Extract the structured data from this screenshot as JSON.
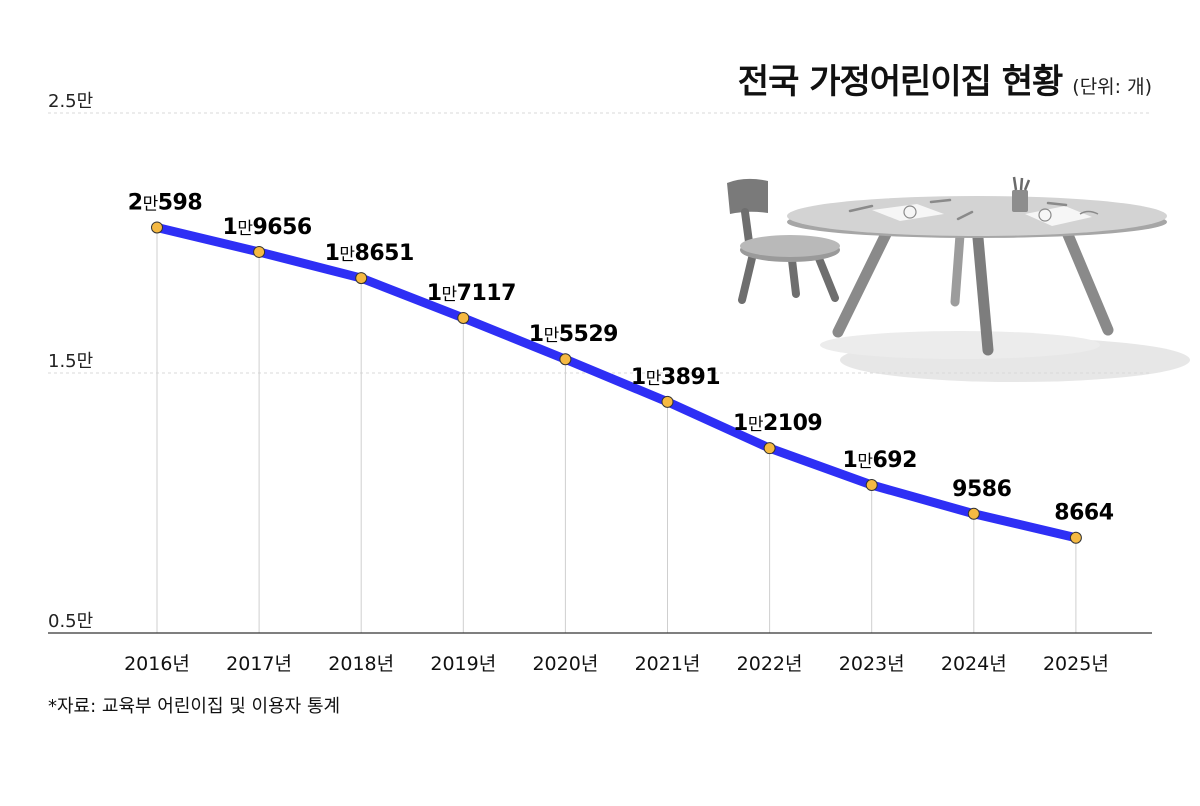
{
  "header": {
    "title": "전국 가정어린이집 현황",
    "unit": "(단위: 개)"
  },
  "footer": {
    "source": "*자료: 교육부 어린이집 및 이용자 통계"
  },
  "colors": {
    "line": "#2e2ff5",
    "marker": "#f5b942",
    "gridline": "#d9d9d9",
    "axis": "#333333"
  },
  "chart_data": {
    "type": "line",
    "title": "전국 가정어린이집 현황",
    "unit": "(단위: 개)",
    "categories": [
      "2016년",
      "2017년",
      "2018년",
      "2019년",
      "2020년",
      "2021년",
      "2022년",
      "2023년",
      "2024년",
      "2025년"
    ],
    "values": [
      20598,
      19656,
      18651,
      17117,
      15529,
      13891,
      12109,
      10692,
      9586,
      8664
    ],
    "data_labels": [
      [
        "2",
        "만",
        "598"
      ],
      [
        "1",
        "만",
        "9656"
      ],
      [
        "1",
        "만",
        "8651"
      ],
      [
        "1",
        "만",
        "7117"
      ],
      [
        "1",
        "만",
        "5529"
      ],
      [
        "1",
        "만",
        "3891"
      ],
      [
        "1",
        "만",
        "2109"
      ],
      [
        "1",
        "만",
        "692"
      ],
      [
        "",
        "",
        "9586"
      ],
      [
        "",
        "",
        "8664"
      ]
    ],
    "y_ticks": [
      {
        "value": 25000,
        "label": "2.5만"
      },
      {
        "value": 15000,
        "label": "1.5만"
      },
      {
        "value": 5000,
        "label": "0.5만"
      }
    ],
    "ylim": [
      5000,
      25000
    ],
    "grid": true,
    "decoration": "table-and-chair-illustration"
  }
}
